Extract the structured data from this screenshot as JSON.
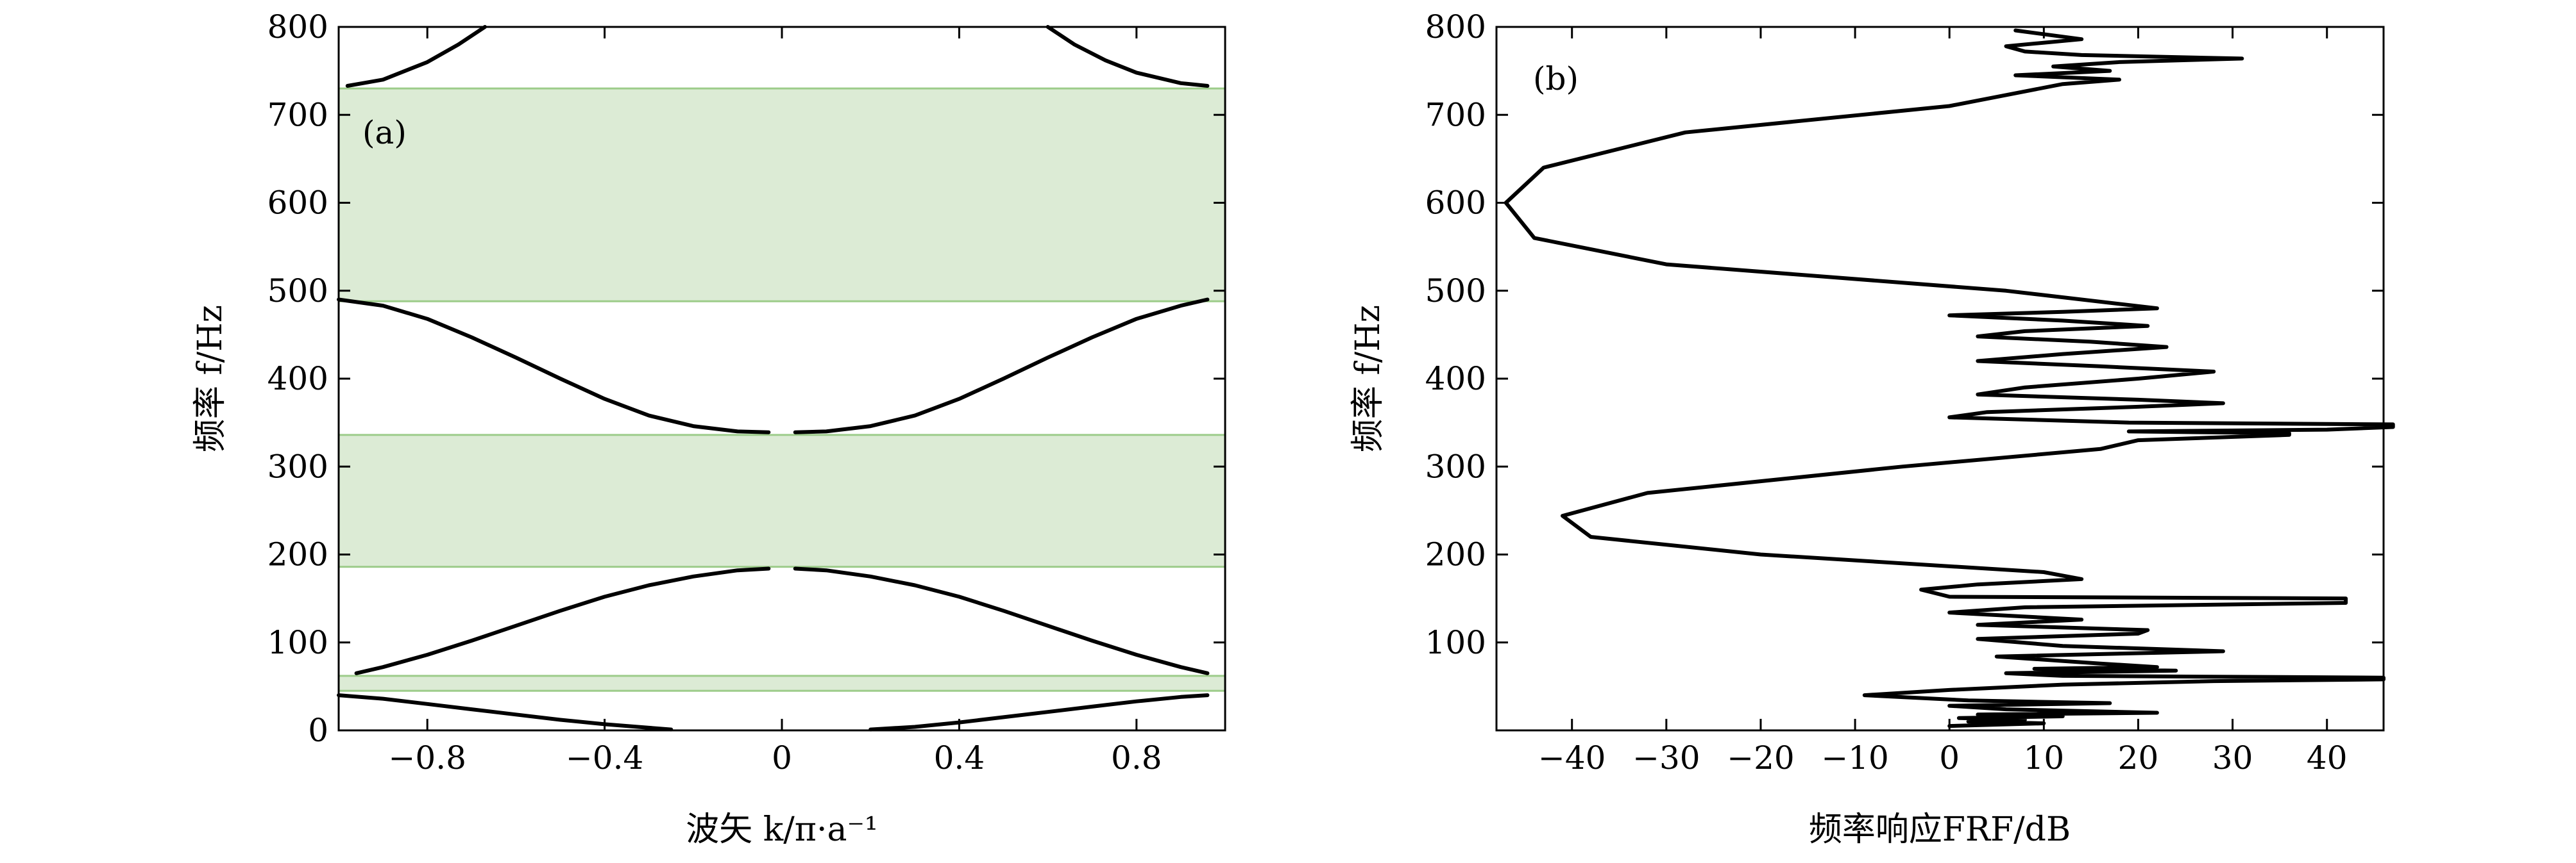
{
  "chart_data": [
    {
      "type": "line",
      "panel_label": "(a)",
      "xlabel": "波矢 k/π·a⁻¹",
      "ylabel": "频率 f/Hz",
      "xlim": [
        -1.0,
        1.0
      ],
      "ylim": [
        0,
        800
      ],
      "xticks": [
        -0.8,
        -0.4,
        0,
        0.4,
        0.8
      ],
      "xtick_labels": [
        "−0.8",
        "−0.4",
        "0",
        "0.4",
        "0.8"
      ],
      "yticks": [
        0,
        100,
        200,
        300,
        400,
        500,
        600,
        700,
        800
      ],
      "ytick_labels": [
        "0",
        "100",
        "200",
        "300",
        "400",
        "500",
        "600",
        "700",
        "800"
      ],
      "band_color": "#dcebd5",
      "band_edge_color": "#9dcc8a",
      "band_gaps": [
        {
          "ymin": 45,
          "ymax": 62
        },
        {
          "ymin": 186,
          "ymax": 336
        },
        {
          "ymin": 488,
          "ymax": 730
        }
      ],
      "series": [
        {
          "x": [
            -1.0,
            -0.9,
            -0.8,
            -0.7,
            -0.6,
            -0.5,
            -0.4,
            -0.3,
            -0.25
          ],
          "y": [
            40,
            36,
            30,
            24,
            18,
            12,
            7,
            3,
            1
          ]
        },
        {
          "x": [
            0.2,
            0.3,
            0.4,
            0.5,
            0.6,
            0.7,
            0.8,
            0.9,
            0.96
          ],
          "y": [
            1,
            4,
            9,
            15,
            21,
            27,
            33,
            38,
            40
          ]
        },
        {
          "x": [
            -0.96,
            -0.9,
            -0.8,
            -0.7,
            -0.6,
            -0.5,
            -0.4,
            -0.3,
            -0.2,
            -0.1,
            -0.03
          ],
          "y": [
            65,
            72,
            86,
            102,
            119,
            136,
            152,
            165,
            175,
            182,
            184
          ]
        },
        {
          "x": [
            0.03,
            0.1,
            0.2,
            0.3,
            0.4,
            0.5,
            0.6,
            0.7,
            0.8,
            0.9,
            0.96
          ],
          "y": [
            184,
            182,
            175,
            165,
            152,
            136,
            119,
            102,
            86,
            72,
            65
          ]
        },
        {
          "x": [
            -1.0,
            -0.9,
            -0.8,
            -0.7,
            -0.6,
            -0.5,
            -0.4,
            -0.3,
            -0.2,
            -0.1,
            -0.03
          ],
          "y": [
            490,
            483,
            468,
            447,
            424,
            400,
            377,
            358,
            346,
            340,
            339
          ]
        },
        {
          "x": [
            0.03,
            0.1,
            0.2,
            0.3,
            0.4,
            0.5,
            0.6,
            0.7,
            0.8,
            0.9,
            0.96
          ],
          "y": [
            339,
            340,
            346,
            358,
            377,
            400,
            424,
            447,
            468,
            483,
            490
          ]
        },
        {
          "x": [
            -0.98,
            -0.9,
            -0.8,
            -0.73,
            -0.67
          ],
          "y": [
            733,
            740,
            760,
            780,
            800
          ]
        },
        {
          "x": [
            0.6,
            0.66,
            0.73,
            0.8,
            0.9,
            0.96
          ],
          "y": [
            800,
            780,
            762,
            748,
            736,
            733
          ]
        }
      ]
    },
    {
      "type": "line",
      "panel_label": "(b)",
      "xlabel": "频率响应FRF/dB",
      "ylabel": "频率 f/Hz",
      "xlim": [
        -48,
        46
      ],
      "ylim": [
        0,
        800
      ],
      "xticks": [
        -40,
        -30,
        -20,
        -10,
        0,
        10,
        20,
        30,
        40
      ],
      "xtick_labels": [
        "−40",
        "−30",
        "−20",
        "−10",
        "0",
        "10",
        "20",
        "30",
        "40"
      ],
      "yticks": [
        100,
        200,
        300,
        400,
        500,
        600,
        700,
        800
      ],
      "ytick_labels": [
        "100",
        "200",
        "300",
        "400",
        "500",
        "600",
        "700",
        "800"
      ],
      "series": [
        {
          "f": [
            5,
            8,
            10,
            12,
            14,
            16,
            18,
            20,
            24,
            28,
            31,
            34,
            40,
            46,
            52,
            56,
            58,
            60,
            62,
            65,
            68,
            70,
            72,
            76,
            84,
            90,
            96,
            104,
            110,
            114,
            120,
            126,
            134,
            140,
            145,
            150,
            152,
            160,
            166,
            172,
            180,
            200,
            220,
            244,
            270,
            300,
            320,
            330,
            336,
            338,
            340,
            342,
            345,
            348,
            350,
            356,
            362,
            368,
            372,
            376,
            382,
            390,
            400,
            408,
            414,
            420,
            428,
            436,
            442,
            448,
            454,
            460,
            466,
            472,
            476,
            480,
            500,
            530,
            560,
            600,
            640,
            680,
            710,
            735,
            740,
            745,
            750,
            755,
            760,
            764,
            768,
            772,
            778,
            786,
            796
          ],
          "v": [
            0,
            10,
            2,
            8,
            1,
            12,
            3,
            22,
            6,
            0,
            17,
            2,
            -9,
            0,
            12,
            28,
            46,
            46,
            12,
            6,
            24,
            9,
            22,
            16,
            5,
            29,
            12,
            3,
            20,
            21,
            3,
            14,
            0,
            8,
            42,
            42,
            0,
            -3,
            3,
            14,
            10,
            -20,
            -38,
            -41,
            -32,
            -5,
            16,
            20,
            36,
            36,
            19,
            40,
            47,
            47,
            19,
            0,
            4,
            20,
            29,
            20,
            3,
            8,
            20,
            28,
            16,
            3,
            12,
            23,
            15,
            3,
            8,
            21,
            12,
            0,
            12,
            22,
            6,
            -30,
            -44,
            -47,
            -43,
            -28,
            0,
            12,
            18,
            7,
            17,
            11,
            18,
            31,
            14,
            8,
            6,
            14,
            7
          ]
        }
      ]
    }
  ]
}
